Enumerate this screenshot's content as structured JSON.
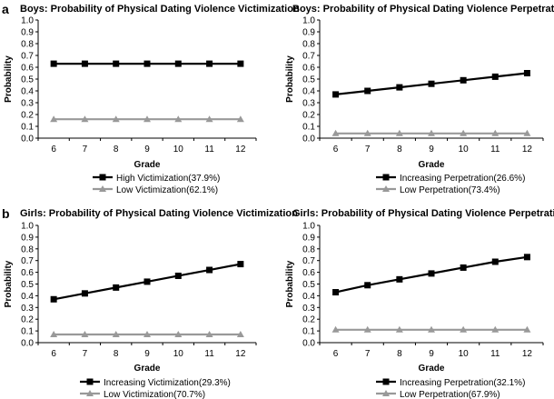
{
  "panel_labels": [
    "a",
    "b"
  ],
  "chart_data": [
    {
      "type": "line",
      "title": "Boys: Probability of Physical Dating Violence Victimization",
      "xlabel": "Grade",
      "ylabel": "Probability",
      "ylim": [
        0,
        1.0
      ],
      "yticks": [
        "0.0",
        "0.1",
        "0.2",
        "0.3",
        "0.4",
        "0.5",
        "0.6",
        "0.7",
        "0.8",
        "0.9",
        "1.0"
      ],
      "categories": [
        "6",
        "7",
        "8",
        "9",
        "10",
        "11",
        "12"
      ],
      "series": [
        {
          "name": "High Victimization(37.9%)",
          "marker": "square",
          "color": "#000000",
          "values": [
            0.63,
            0.63,
            0.63,
            0.63,
            0.63,
            0.63,
            0.63
          ]
        },
        {
          "name": "Low Victimization(62.1%)",
          "marker": "triangle",
          "color": "#999999",
          "values": [
            0.16,
            0.16,
            0.16,
            0.16,
            0.16,
            0.16,
            0.16
          ]
        }
      ]
    },
    {
      "type": "line",
      "title": "Boys: Probability of Physical Dating Violence Perpetration",
      "xlabel": "Grade",
      "ylabel": "Probability",
      "ylim": [
        0,
        1.0
      ],
      "yticks": [
        "0.0",
        "0.1",
        "0.2",
        "0.3",
        "0.4",
        "0.5",
        "0.6",
        "0.7",
        "0.8",
        "0.9",
        "1.0"
      ],
      "categories": [
        "6",
        "7",
        "8",
        "9",
        "10",
        "11",
        "12"
      ],
      "series": [
        {
          "name": "Increasing Perpetration(26.6%)",
          "marker": "square",
          "color": "#000000",
          "values": [
            0.37,
            0.4,
            0.43,
            0.46,
            0.49,
            0.52,
            0.55
          ]
        },
        {
          "name": "Low Perpetration(73.4%)",
          "marker": "triangle",
          "color": "#999999",
          "values": [
            0.04,
            0.04,
            0.04,
            0.04,
            0.04,
            0.04,
            0.04
          ]
        }
      ]
    },
    {
      "type": "line",
      "title": "Girls: Probability of Physical Dating Violence Victimization",
      "xlabel": "Grade",
      "ylabel": "Probability",
      "ylim": [
        0,
        1.0
      ],
      "yticks": [
        "0.0",
        "0.1",
        "0.2",
        "0.3",
        "0.4",
        "0.5",
        "0.6",
        "0.7",
        "0.8",
        "0.9",
        "1.0"
      ],
      "categories": [
        "6",
        "7",
        "8",
        "9",
        "10",
        "11",
        "12"
      ],
      "series": [
        {
          "name": "Increasing Victimization(29.3%)",
          "marker": "square",
          "color": "#000000",
          "values": [
            0.37,
            0.42,
            0.47,
            0.52,
            0.57,
            0.62,
            0.67
          ]
        },
        {
          "name": "Low Victimization(70.7%)",
          "marker": "triangle",
          "color": "#999999",
          "values": [
            0.07,
            0.07,
            0.07,
            0.07,
            0.07,
            0.07,
            0.07
          ]
        }
      ]
    },
    {
      "type": "line",
      "title": "Girls: Probability of Physical Dating Violence Perpetration",
      "xlabel": "Grade",
      "ylabel": "Probability",
      "ylim": [
        0,
        1.0
      ],
      "yticks": [
        "0.0",
        "0.1",
        "0.2",
        "0.3",
        "0.4",
        "0.5",
        "0.6",
        "0.7",
        "0.8",
        "0.9",
        "1.0"
      ],
      "categories": [
        "6",
        "7",
        "8",
        "9",
        "10",
        "11",
        "12"
      ],
      "series": [
        {
          "name": "Increasing Perpetration(32.1%)",
          "marker": "square",
          "color": "#000000",
          "values": [
            0.43,
            0.49,
            0.54,
            0.59,
            0.64,
            0.69,
            0.73
          ]
        },
        {
          "name": "Low Perpetration(67.9%)",
          "marker": "triangle",
          "color": "#999999",
          "values": [
            0.11,
            0.11,
            0.11,
            0.11,
            0.11,
            0.11,
            0.11
          ]
        }
      ]
    }
  ]
}
